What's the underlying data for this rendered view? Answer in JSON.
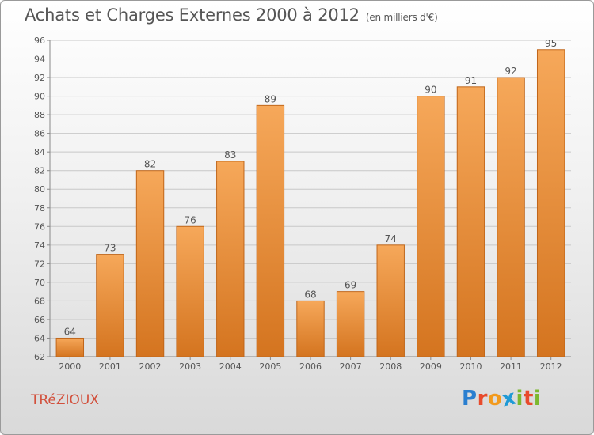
{
  "header": {
    "title": "Achats et Charges Externes 2000 à 2012",
    "subtitle": "(en milliers d'€)"
  },
  "footer": {
    "commune": "TRéZIOUX",
    "logo_letters": [
      "P",
      "r",
      "o",
      "x",
      "i",
      "t",
      "i"
    ],
    "logo_colors": [
      "#2a7fd0",
      "#e84b2c",
      "#f29a1d",
      "#1f9ad6",
      "#7cb82f",
      "#e84b2c",
      "#7cb82f"
    ]
  },
  "colors": {
    "bar_light": "#f6a85a",
    "bar_dark": "#d4741f",
    "bar_border": "#c0661a",
    "grid": "#c8c8c8",
    "text": "#555555"
  },
  "chart_data": {
    "type": "bar",
    "title": "Achats et Charges Externes 2000 à 2012",
    "subtitle": "(en milliers d'€)",
    "categories": [
      "2000",
      "2001",
      "2002",
      "2003",
      "2004",
      "2005",
      "2006",
      "2007",
      "2008",
      "2009",
      "2010",
      "2011",
      "2012"
    ],
    "values": [
      64,
      73,
      82,
      76,
      83,
      89,
      68,
      69,
      74,
      90,
      91,
      92,
      95
    ],
    "ylim": [
      62,
      96
    ],
    "yticks": [
      62,
      64,
      66,
      68,
      70,
      72,
      74,
      76,
      78,
      80,
      82,
      84,
      86,
      88,
      90,
      92,
      94,
      96
    ],
    "grid": true,
    "data_labels": true
  }
}
